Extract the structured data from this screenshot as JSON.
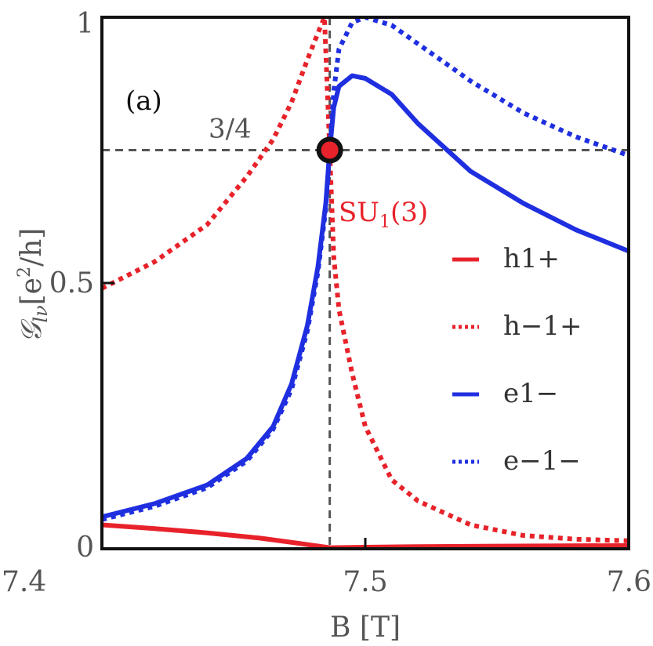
{
  "chart_data": {
    "type": "line",
    "panel_label": "(a)",
    "xlabel": "B [T]",
    "ylabel_main": "𝒢",
    "ylabel_sub": "lν",
    "ylabel_unit_open": "[e",
    "ylabel_unit_sup": "2",
    "ylabel_unit_close": "/h]",
    "xlim": [
      7.4,
      7.6
    ],
    "ylim": [
      0,
      1
    ],
    "x_ticks": [
      {
        "value": 7.4,
        "label": "7.4"
      },
      {
        "value": 7.5,
        "label": "7.5"
      },
      {
        "value": 7.6,
        "label": "7.6"
      }
    ],
    "y_ticks": [
      {
        "value": 0,
        "label": "0"
      },
      {
        "value": 0.5,
        "label": "0.5"
      },
      {
        "value": 1,
        "label": "1"
      }
    ],
    "reference_lines": {
      "horizontal": {
        "y": 0.75,
        "label": "3/4"
      },
      "vertical": {
        "x": 7.4865
      }
    },
    "marker": {
      "x": 7.4865,
      "y": 0.75,
      "label_main": "SU",
      "label_sub": "1",
      "label_rest": "(3)"
    },
    "legend_position": "right",
    "series": [
      {
        "name": "h1+",
        "color": "#e8222a",
        "style": "solid",
        "points": [
          [
            7.4,
            0.045
          ],
          [
            7.42,
            0.038
          ],
          [
            7.44,
            0.03
          ],
          [
            7.46,
            0.02
          ],
          [
            7.475,
            0.01
          ],
          [
            7.4865,
            0.002
          ],
          [
            7.5,
            0.003
          ],
          [
            7.52,
            0.004
          ],
          [
            7.55,
            0.005
          ],
          [
            7.6,
            0.006
          ]
        ]
      },
      {
        "name": "h−1+",
        "color": "#e8222a",
        "style": "dotted",
        "points": [
          [
            7.4,
            0.49
          ],
          [
            7.42,
            0.54
          ],
          [
            7.44,
            0.61
          ],
          [
            7.455,
            0.7
          ],
          [
            7.465,
            0.77
          ],
          [
            7.472,
            0.84
          ],
          [
            7.478,
            0.92
          ],
          [
            7.482,
            0.97
          ],
          [
            7.4845,
            1.0
          ],
          [
            7.4865,
            0.75
          ],
          [
            7.488,
            0.55
          ],
          [
            7.49,
            0.45
          ],
          [
            7.495,
            0.33
          ],
          [
            7.5,
            0.23
          ],
          [
            7.51,
            0.13
          ],
          [
            7.52,
            0.09
          ],
          [
            7.54,
            0.045
          ],
          [
            7.56,
            0.025
          ],
          [
            7.58,
            0.018
          ],
          [
            7.6,
            0.015
          ]
        ]
      },
      {
        "name": "e1−",
        "color": "#1f2fe0",
        "style": "solid",
        "points": [
          [
            7.4,
            0.06
          ],
          [
            7.42,
            0.085
          ],
          [
            7.44,
            0.12
          ],
          [
            7.455,
            0.17
          ],
          [
            7.465,
            0.23
          ],
          [
            7.472,
            0.31
          ],
          [
            7.478,
            0.42
          ],
          [
            7.482,
            0.53
          ],
          [
            7.485,
            0.65
          ],
          [
            7.4865,
            0.75
          ],
          [
            7.488,
            0.83
          ],
          [
            7.49,
            0.87
          ],
          [
            7.495,
            0.89
          ],
          [
            7.5,
            0.885
          ],
          [
            7.51,
            0.855
          ],
          [
            7.52,
            0.8
          ],
          [
            7.54,
            0.71
          ],
          [
            7.56,
            0.65
          ],
          [
            7.58,
            0.6
          ],
          [
            7.6,
            0.56
          ]
        ]
      },
      {
        "name": "e−1−",
        "color": "#1f2fe0",
        "style": "dotted",
        "points": [
          [
            7.4,
            0.055
          ],
          [
            7.42,
            0.08
          ],
          [
            7.44,
            0.115
          ],
          [
            7.455,
            0.165
          ],
          [
            7.465,
            0.225
          ],
          [
            7.472,
            0.3
          ],
          [
            7.478,
            0.41
          ],
          [
            7.482,
            0.52
          ],
          [
            7.485,
            0.64
          ],
          [
            7.4865,
            0.75
          ],
          [
            7.488,
            0.86
          ],
          [
            7.49,
            0.94
          ],
          [
            7.495,
            0.99
          ],
          [
            7.5,
            1.0
          ],
          [
            7.51,
            0.985
          ],
          [
            7.52,
            0.95
          ],
          [
            7.54,
            0.88
          ],
          [
            7.56,
            0.82
          ],
          [
            7.58,
            0.775
          ],
          [
            7.6,
            0.74
          ]
        ]
      }
    ]
  }
}
